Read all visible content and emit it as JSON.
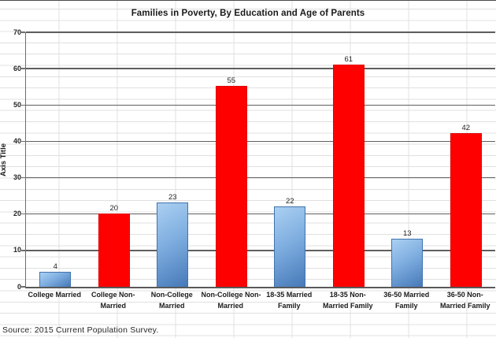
{
  "source_note": "Source: 2015 Current Population Survey.",
  "chart_data": {
    "type": "bar",
    "title": "Families in Poverty, By Education and Age of Parents",
    "xlabel": "",
    "ylabel": "Axis Title",
    "ylim": [
      0,
      70
    ],
    "ytick_step": 10,
    "grid": true,
    "legend_position": "none",
    "categories": [
      "College Married",
      "College Non-Married",
      "Non-College Married",
      "Non-College Non-Married",
      "18-35 Married Family",
      "18-35 Non-Married Family",
      "36-50 Married Family",
      "36-50 Non-Married Family"
    ],
    "values": [
      4,
      20,
      23,
      55,
      22,
      61,
      13,
      42
    ],
    "bars": [
      {
        "category": "College Married",
        "label_lines": [
          "College Married"
        ],
        "value": 4,
        "color": "blue"
      },
      {
        "category": "College Non-Married",
        "label_lines": [
          "College Non-",
          "Married"
        ],
        "value": 20,
        "color": "red"
      },
      {
        "category": "Non-College Married",
        "label_lines": [
          "Non-College",
          "Married"
        ],
        "value": 23,
        "color": "blue"
      },
      {
        "category": "Non-College Non-Married",
        "label_lines": [
          "Non-College Non-",
          "Married"
        ],
        "value": 55,
        "color": "red"
      },
      {
        "category": "18-35 Married Family",
        "label_lines": [
          "18-35 Married",
          "Family"
        ],
        "value": 22,
        "color": "blue"
      },
      {
        "category": "18-35 Non-Married Family",
        "label_lines": [
          "18-35 Non-",
          "Married Family"
        ],
        "value": 61,
        "color": "red"
      },
      {
        "category": "36-50 Married Family",
        "label_lines": [
          "36-50 Married",
          "Family"
        ],
        "value": 13,
        "color": "blue"
      },
      {
        "category": "36-50 Non-Married Family",
        "label_lines": [
          "36-50 Non-",
          "Married Family"
        ],
        "value": 42,
        "color": "red"
      }
    ],
    "palette": {
      "red_fill": "#FE0000",
      "blue_fill_top": "#ABD0F2",
      "blue_fill_bottom": "#4679B8",
      "major_gridline": "#5F5F5F",
      "cell_gridline": "#E0E0E0",
      "text": "#1A1A1A"
    }
  }
}
